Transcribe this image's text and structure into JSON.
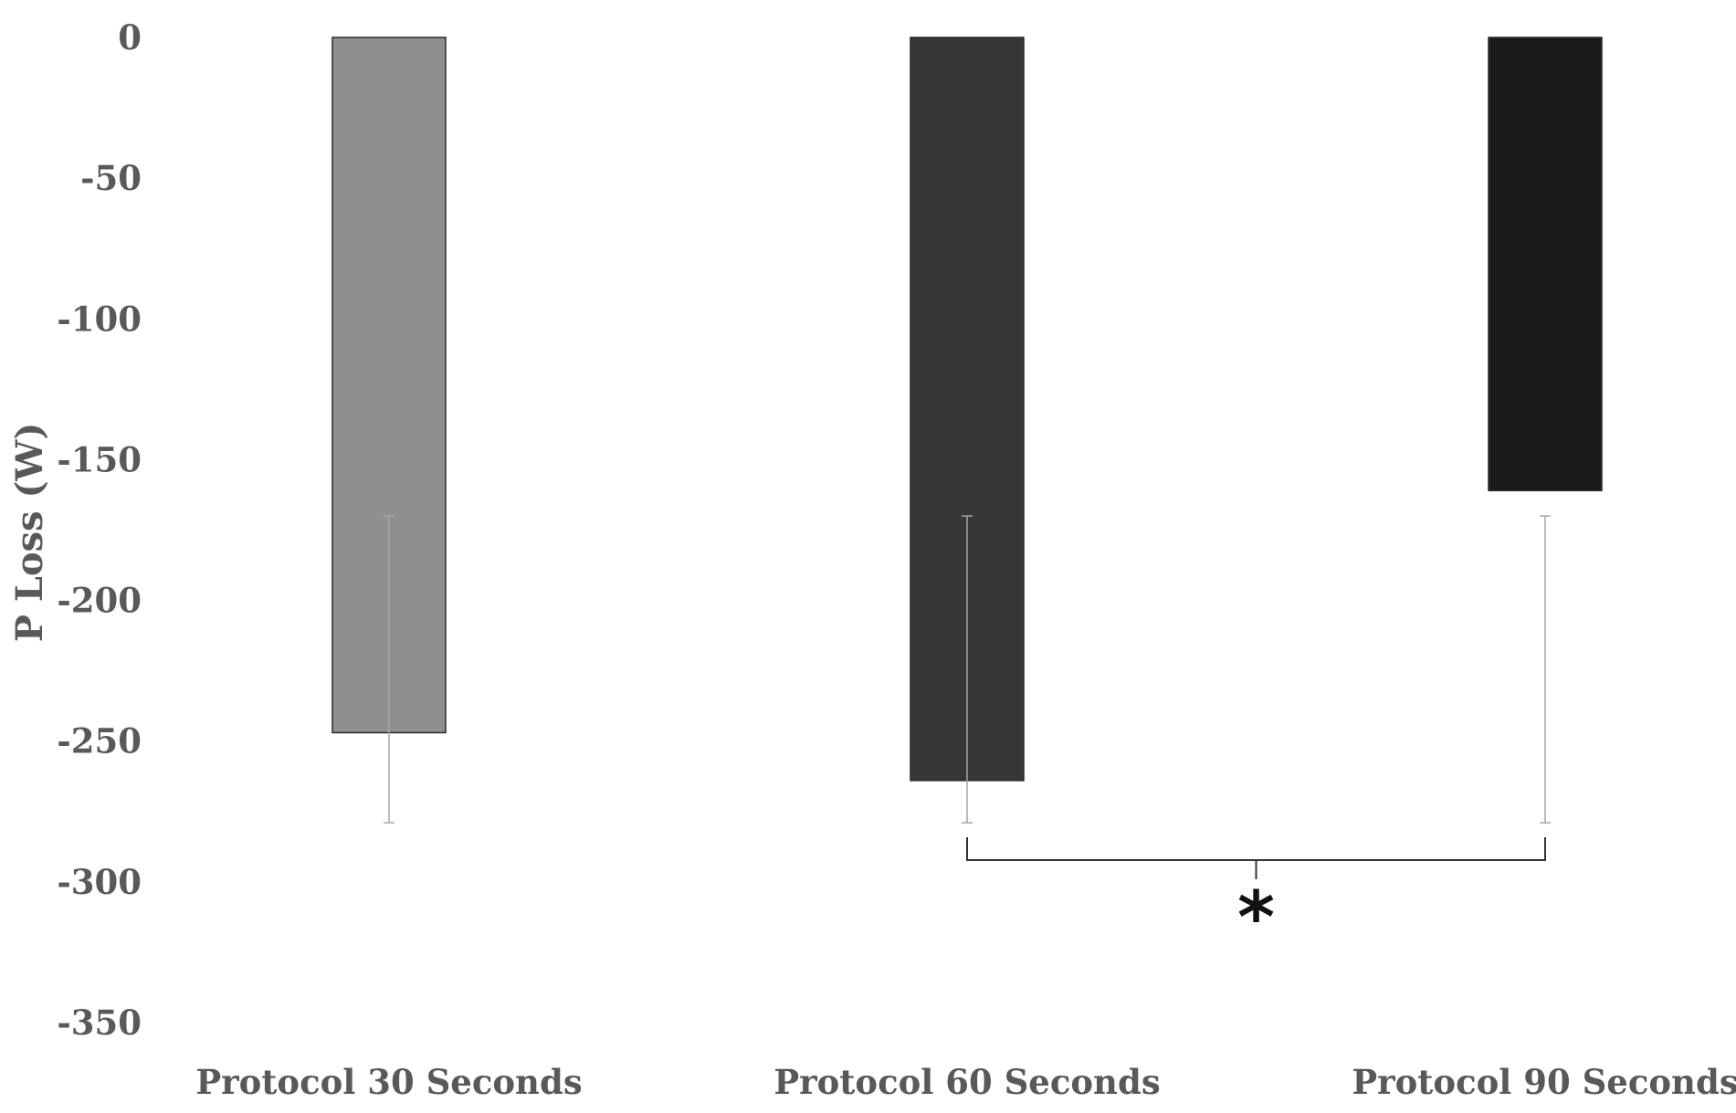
{
  "chart_data": {
    "type": "bar",
    "title": "",
    "xlabel": "",
    "ylabel": "P Loss (W)",
    "categories": [
      "Protocol 30 Seconds",
      "Protocol 60 Seconds",
      "Protocol 90 Seconds"
    ],
    "values": [
      -247,
      -264,
      -161
    ],
    "error_lower": [
      -279,
      -279,
      -279
    ],
    "colors": [
      "#8f8f8f",
      "#383735",
      "#1a1a1a"
    ],
    "error_bar_color": "#a6a6a6",
    "ylim": [
      -350,
      0
    ],
    "yticks": [
      0,
      -50,
      -100,
      -150,
      -200,
      -250,
      -300,
      -350
    ],
    "grid": false,
    "legend": "none",
    "significance": {
      "from_category": "Protocol 60 Seconds",
      "to_category": "Protocol 90 Seconds",
      "marker": "*"
    }
  }
}
